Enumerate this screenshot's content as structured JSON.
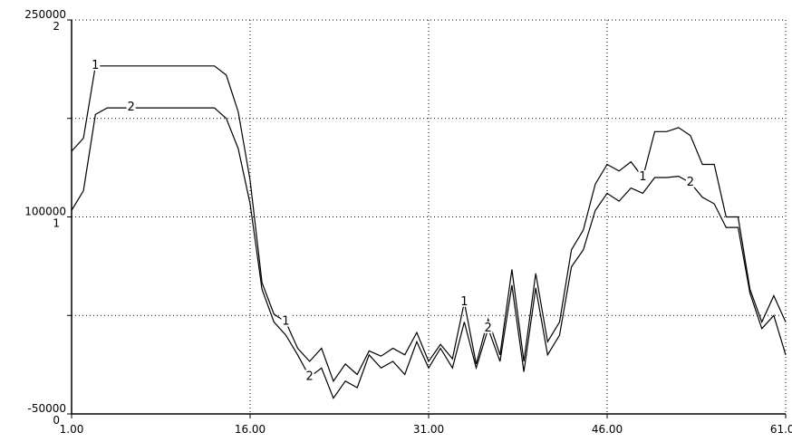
{
  "chart_data": {
    "type": "line",
    "title": "",
    "xlabel": "",
    "ylabel": "",
    "xlim": [
      1,
      61
    ],
    "x_ticks": [
      "1.00",
      "16.00",
      "31.00",
      "46.00",
      "61.00"
    ],
    "left_axis": {
      "tick_values": [
        250000,
        100000,
        -50000
      ],
      "tick_labels": [
        "250000",
        "100000",
        "-50000"
      ]
    },
    "right_axis": {
      "tick_values": [
        2,
        1,
        0
      ],
      "tick_labels": [
        "2",
        "1",
        "0"
      ]
    },
    "grid": true,
    "series": [
      {
        "label": "1",
        "color": "#000000",
        "x": [
          1,
          2,
          3,
          4,
          5,
          6,
          7,
          8,
          9,
          10,
          11,
          12,
          13,
          14,
          15,
          16,
          17,
          18,
          19,
          20,
          21,
          22,
          23,
          24,
          25,
          26,
          27,
          28,
          29,
          30,
          31,
          32,
          33,
          34,
          35,
          36,
          37,
          38,
          39,
          40,
          41,
          42,
          43,
          44,
          45,
          46,
          47,
          48,
          49,
          50,
          51,
          52,
          53,
          54,
          55,
          56,
          57,
          58,
          59,
          60,
          61
        ],
        "values": [
          150000,
          160000,
          215000,
          215000,
          215000,
          215000,
          215000,
          215000,
          215000,
          215000,
          215000,
          215000,
          215000,
          208000,
          180000,
          128000,
          50000,
          26000,
          20000,
          0,
          -10000,
          0,
          -25000,
          -12000,
          -20000,
          -2000,
          -6000,
          0,
          -5000,
          12000,
          -10000,
          3000,
          -8000,
          35000,
          -12000,
          22000,
          -5000,
          60000,
          -10000,
          57000,
          5000,
          20000,
          75000,
          90000,
          125000,
          140000,
          135000,
          142000,
          130000,
          165000,
          165000,
          168000,
          162000,
          140000,
          140000,
          100000,
          100000,
          45000,
          20000,
          40000,
          20000
        ]
      },
      {
        "label": "2",
        "color": "#000000",
        "x": [
          1,
          2,
          3,
          4,
          5,
          6,
          7,
          8,
          9,
          10,
          11,
          12,
          13,
          14,
          15,
          16,
          17,
          18,
          19,
          20,
          21,
          22,
          23,
          24,
          25,
          26,
          27,
          28,
          29,
          30,
          31,
          32,
          33,
          34,
          35,
          36,
          37,
          38,
          39,
          40,
          41,
          42,
          43,
          44,
          45,
          46,
          47,
          48,
          49,
          50,
          51,
          52,
          53,
          54,
          55,
          56,
          57,
          58,
          59,
          60,
          61
        ],
        "values": [
          105000,
          120000,
          178000,
          183000,
          183000,
          183000,
          183000,
          183000,
          183000,
          183000,
          183000,
          183000,
          183000,
          175000,
          152000,
          110000,
          45000,
          20000,
          10000,
          -5000,
          -22000,
          -15000,
          -38000,
          -25000,
          -30000,
          -5000,
          -15000,
          -10000,
          -20000,
          5000,
          -15000,
          0,
          -15000,
          20000,
          -15000,
          15000,
          -10000,
          48000,
          -18000,
          46000,
          -5000,
          10000,
          62000,
          75000,
          105000,
          118000,
          112000,
          122000,
          118000,
          130000,
          130000,
          131000,
          126000,
          115000,
          110000,
          92000,
          92000,
          42000,
          15000,
          25000,
          -5000
        ]
      }
    ]
  }
}
